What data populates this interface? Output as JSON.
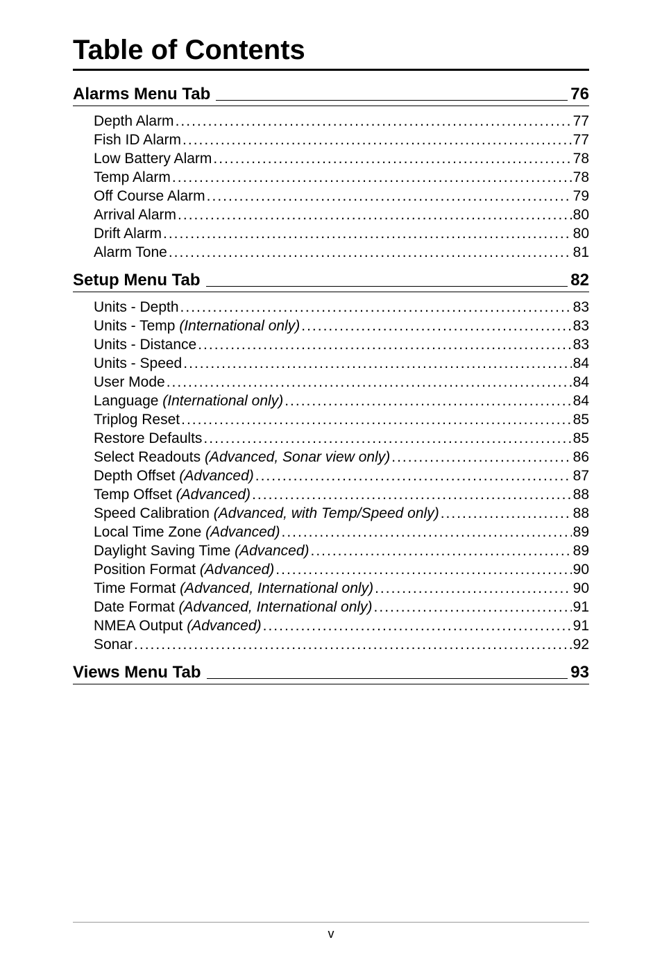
{
  "page": {
    "title": "Table of Contents",
    "footer_page": "v"
  },
  "sections": [
    {
      "title": "Alarms Menu Tab",
      "page": "76",
      "entries": [
        {
          "title": "Depth Alarm",
          "suffix": "",
          "page": "77"
        },
        {
          "title": "Fish ID Alarm",
          "suffix": "",
          "page": "77"
        },
        {
          "title": "Low Battery Alarm",
          "suffix": "",
          "page": "78"
        },
        {
          "title": "Temp Alarm",
          "suffix": "",
          "page": "78"
        },
        {
          "title": "Off Course Alarm",
          "suffix": "",
          "page": "79"
        },
        {
          "title": "Arrival Alarm",
          "suffix": "",
          "page": "80"
        },
        {
          "title": "Drift Alarm",
          "suffix": "",
          "page": "80"
        },
        {
          "title": "Alarm Tone",
          "suffix": "",
          "page": "81"
        }
      ]
    },
    {
      "title": "Setup Menu Tab",
      "page": "82",
      "entries": [
        {
          "title": "Units - Depth",
          "suffix": "",
          "page": "83"
        },
        {
          "title": "Units - Temp",
          "suffix": " (International only)",
          "page": "83"
        },
        {
          "title": "Units - Distance",
          "suffix": "",
          "page": "83"
        },
        {
          "title": "Units - Speed",
          "suffix": "",
          "page": "84"
        },
        {
          "title": "User Mode",
          "suffix": "",
          "page": "84"
        },
        {
          "title": "Language",
          "suffix": " (International only)",
          "page": "84"
        },
        {
          "title": "Triplog Reset",
          "suffix": "",
          "page": "85"
        },
        {
          "title": "Restore Defaults",
          "suffix": "",
          "page": "85"
        },
        {
          "title": "Select Readouts",
          "suffix": " (Advanced, Sonar view only)",
          "page": "86"
        },
        {
          "title": "Depth Offset",
          "suffix": " (Advanced)",
          "page": "87"
        },
        {
          "title": "Temp Offset",
          "suffix": " (Advanced)",
          "page": "88"
        },
        {
          "title": "Speed Calibration",
          "suffix": " (Advanced, with Temp/Speed only)",
          "page": "88"
        },
        {
          "title": "Local Time Zone",
          "suffix": " (Advanced)",
          "page": "89"
        },
        {
          "title": "Daylight Saving Time",
          "suffix": " (Advanced)",
          "page": "89"
        },
        {
          "title": "Position Format",
          "suffix": " (Advanced)",
          "page": "90"
        },
        {
          "title": "Time Format",
          "suffix": " (Advanced, International only)",
          "page": "90"
        },
        {
          "title": "Date Format",
          "suffix": " (Advanced, International only)",
          "page": "91"
        },
        {
          "title": "NMEA Output",
          "suffix": " (Advanced)",
          "page": "91"
        },
        {
          "title": "Sonar",
          "suffix": "",
          "page": "92"
        }
      ]
    },
    {
      "title": "Views Menu Tab",
      "page": "93",
      "entries": []
    }
  ]
}
